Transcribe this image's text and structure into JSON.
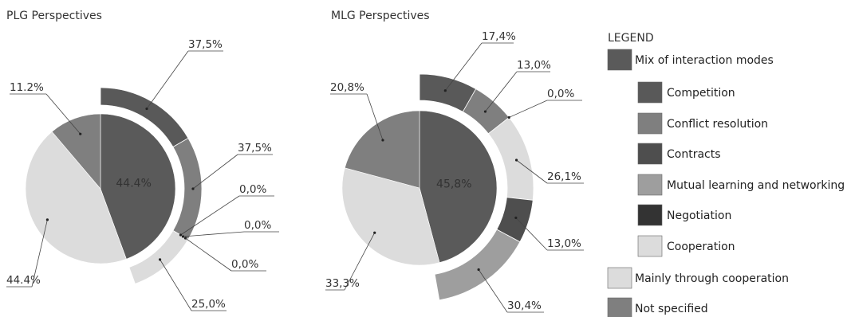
{
  "legend": {
    "title": "LEGEND",
    "items": [
      {
        "label": "Mix of interaction modes",
        "color": "#5a5a5a",
        "sub": false
      },
      {
        "label": "Competition",
        "color": "#595959",
        "sub": true
      },
      {
        "label": "Conflict resolution",
        "color": "#7f7f7f",
        "sub": true
      },
      {
        "label": "Contracts",
        "color": "#4e4e4e",
        "sub": true
      },
      {
        "label": "Mutual learning and networking",
        "color": "#9e9e9e",
        "sub": true
      },
      {
        "label": "Negotiation",
        "color": "#333333",
        "sub": true
      },
      {
        "label": "Cooperation",
        "color": "#dcdcdc",
        "sub": true
      },
      {
        "label": "Mainly through cooperation",
        "color": "#dcdcdc",
        "sub": false
      },
      {
        "label": "Not specified",
        "color": "#7f7f7f",
        "sub": false
      }
    ]
  },
  "chart_data": [
    {
      "type": "pie",
      "title": "PLG Perspectives",
      "pie": {
        "slices": [
          {
            "category": "Mix of interaction modes",
            "value": 44.4,
            "label": "44.4%",
            "color": "#5a5a5a"
          },
          {
            "category": "Mainly through cooperation",
            "value": 44.4,
            "label": "44.4%",
            "color": "#dcdcdc"
          },
          {
            "category": "Not specified",
            "value": 11.2,
            "label": "11.2%",
            "color": "#7f7f7f"
          }
        ]
      },
      "breakdown": {
        "of": "Mix of interaction modes",
        "slices": [
          {
            "category": "Competition",
            "value": 37.5,
            "label": "37,5%",
            "color": "#595959"
          },
          {
            "category": "Conflict resolution",
            "value": 37.5,
            "label": "37,5%",
            "color": "#7f7f7f"
          },
          {
            "category": "Contracts",
            "value": 0.0,
            "label": "0,0%",
            "color": "#4e4e4e"
          },
          {
            "category": "Mutual learning and networking",
            "value": 0.0,
            "label": "0,0%",
            "color": "#9e9e9e"
          },
          {
            "category": "Negotiation",
            "value": 0.0,
            "label": "0,0%",
            "color": "#333333"
          },
          {
            "category": "Cooperation",
            "value": 25.0,
            "label": "25,0%",
            "color": "#dcdcdc"
          }
        ]
      }
    },
    {
      "type": "pie",
      "title": "MLG Perspectives",
      "pie": {
        "slices": [
          {
            "category": "Mix of interaction modes",
            "value": 45.8,
            "label": "45,8%",
            "color": "#5a5a5a"
          },
          {
            "category": "Mainly through cooperation",
            "value": 33.3,
            "label": "33,3%",
            "color": "#dcdcdc"
          },
          {
            "category": "Not specified",
            "value": 20.8,
            "label": "20,8%",
            "color": "#7f7f7f"
          }
        ]
      },
      "breakdown": {
        "of": "Mix of interaction modes",
        "slices": [
          {
            "category": "Competition",
            "value": 17.4,
            "label": "17,4%",
            "color": "#595959"
          },
          {
            "category": "Conflict resolution",
            "value": 13.0,
            "label": "13,0%",
            "color": "#7f7f7f"
          },
          {
            "category": "Mutual learning and networking",
            "value": 0.0,
            "label": "0,0%",
            "color": "#9e9e9e"
          },
          {
            "category": "Cooperation",
            "value": 26.1,
            "label": "26,1%",
            "color": "#dcdcdc"
          },
          {
            "category": "Contracts",
            "value": 13.0,
            "label": "13,0%",
            "color": "#4e4e4e"
          },
          {
            "category": "Mutual learning and networking",
            "value": 30.4,
            "label": "30,4%",
            "color": "#9e9e9e"
          }
        ]
      }
    }
  ]
}
